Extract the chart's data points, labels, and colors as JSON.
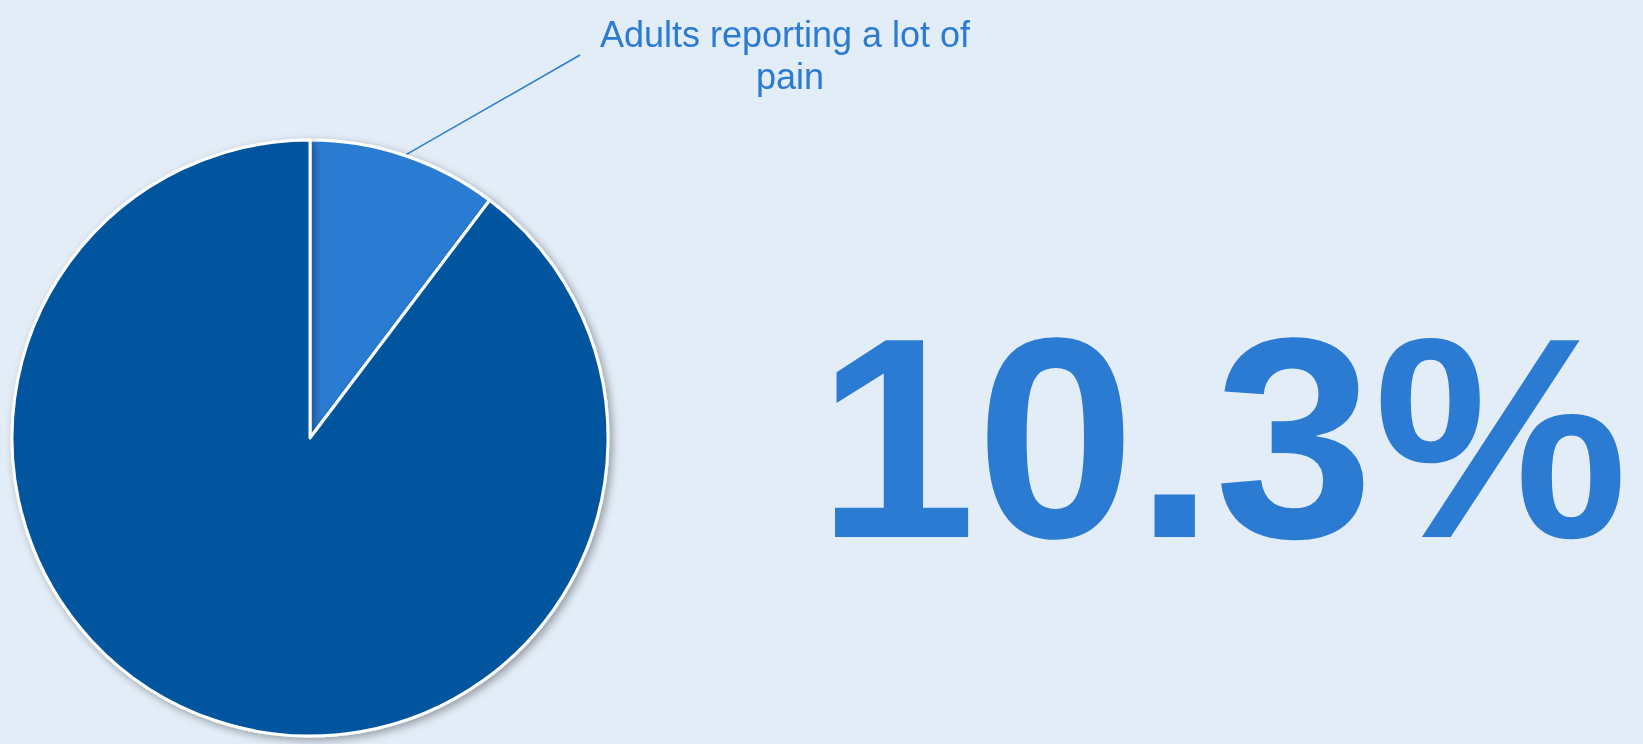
{
  "chart_data": {
    "type": "pie",
    "categories": [
      "Adults reporting a lot of pain",
      null
    ],
    "values": [
      10.3,
      89.7
    ],
    "colors": [
      "#2b7bd3",
      "#02559e"
    ],
    "annotations": [
      "10.3%"
    ],
    "legend": false
  }
}
